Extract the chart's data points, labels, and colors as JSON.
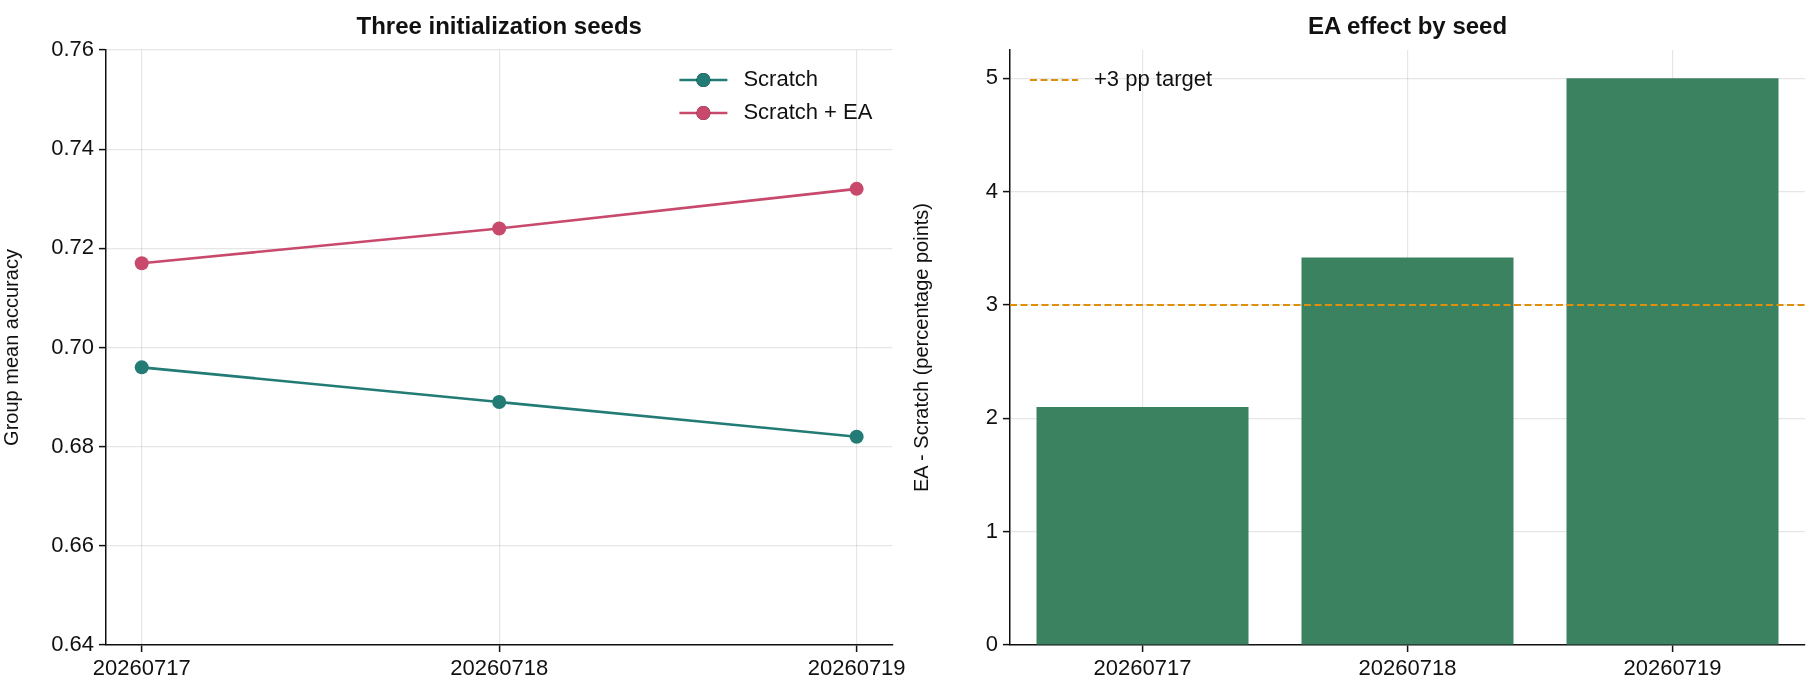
{
  "chart_data": [
    {
      "type": "line",
      "title": "Three initialization seeds",
      "ylabel": "Group mean accuracy",
      "categories": [
        "20260717",
        "20260718",
        "20260719"
      ],
      "series": [
        {
          "name": "Scratch",
          "color": "#227b74",
          "values": [
            0.696,
            0.689,
            0.682
          ]
        },
        {
          "name": "Scratch + EA",
          "color": "#c8496b",
          "values": [
            0.717,
            0.724,
            0.732
          ]
        }
      ],
      "ylim": [
        0.64,
        0.76
      ],
      "yticks": [
        0.64,
        0.66,
        0.68,
        {
          "value": 0.7,
          "label": "0.70"
        },
        0.72,
        0.74,
        0.76
      ],
      "grid": true,
      "legend": "top right",
      "marker": "circle",
      "line_style": "solid"
    },
    {
      "type": "bar",
      "title": "EA effect by seed",
      "ylabel": "EA - Scratch (percentage points)",
      "categories": [
        "20260717",
        "20260718",
        "20260719"
      ],
      "values": [
        2.1,
        3.42,
        5
      ],
      "color": "#3a8260",
      "ylim": [
        0,
        5.25
      ],
      "yticks": [
        0,
        1,
        2,
        3,
        4,
        5
      ],
      "grid": true,
      "legend": "top left",
      "ref_lines": [
        {
          "axis": "y",
          "value": 3,
          "label": "+3 pp target",
          "color": "#de8f0c",
          "line_style": "dashed"
        }
      ]
    }
  ]
}
